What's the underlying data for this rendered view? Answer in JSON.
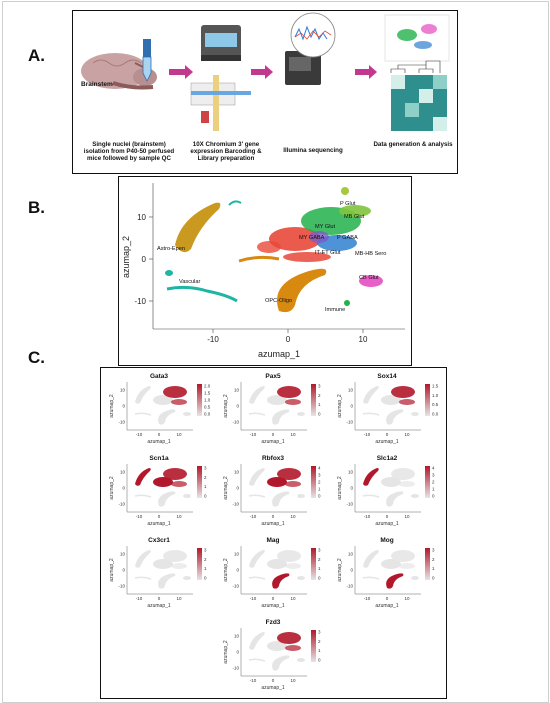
{
  "panels": {
    "a": {
      "letter": "A.",
      "brain_label": "Brainstem",
      "steps": [
        "Single nuclei (brainstem) isolation from P40-50 perfused mice followed by sample QC",
        "10X Chromium 3' gene expression Barcoding & Library preparation",
        "Illumina sequencing",
        "Data generation & analysis"
      ]
    },
    "b": {
      "letter": "B.",
      "xlabel": "azumap_1",
      "ylabel": "azumap_2",
      "xticks": [
        "-10",
        "0",
        "10"
      ],
      "yticks": [
        "10",
        "0",
        "-10"
      ],
      "clusters": [
        "P Glut",
        "MB Glut",
        "MY Glut",
        "MY GABA",
        "P GABA",
        "IT-ET Glut",
        "MB-HB Sero",
        "CB Glut",
        "Astro-Epen",
        "Vascular",
        "OPC-Oligo",
        "Immune"
      ]
    },
    "c": {
      "letter": "C.",
      "xlabel": "azumap_1",
      "ylabel": "azumap_2",
      "xticks": [
        "-10",
        "0",
        "10"
      ],
      "yticks": [
        "10",
        "0",
        "-10"
      ],
      "genes": [
        {
          "name": "Gata3",
          "legend": [
            "2.0",
            "1.5",
            "1.0",
            "0.5",
            "0.0"
          ]
        },
        {
          "name": "Pax5",
          "legend": [
            "3",
            "2",
            "1",
            "0"
          ]
        },
        {
          "name": "Sox14",
          "legend": [
            "1.5",
            "1.0",
            "0.5",
            "0.0"
          ]
        },
        {
          "name": "Scn1a",
          "legend": [
            "3",
            "2",
            "1",
            "0"
          ]
        },
        {
          "name": "Rbfox3",
          "legend": [
            "4",
            "3",
            "2",
            "1",
            "0"
          ]
        },
        {
          "name": "Slc1a2",
          "legend": [
            "4",
            "3",
            "2",
            "1",
            "0"
          ]
        },
        {
          "name": "Cx3cr1",
          "legend": [
            "3",
            "2",
            "1",
            "0"
          ]
        },
        {
          "name": "Mag",
          "legend": [
            "3",
            "2",
            "1",
            "0"
          ]
        },
        {
          "name": "Mog",
          "legend": [
            "3",
            "2",
            "1",
            "0"
          ]
        },
        {
          "name": "Fzd3",
          "legend": [
            "3",
            "2",
            "1",
            "0"
          ]
        }
      ]
    }
  },
  "colors": {
    "arrow": "#c2388f",
    "heat_high": "#b2182b",
    "heat_low": "#e5e5e5",
    "astro": "#c99a1f",
    "oligo": "#d88a10",
    "vascular": "#1fb5a5",
    "red_cluster": "#e8483a",
    "green_cluster": "#22b24a",
    "blue_cluster": "#2f7fd1",
    "cb": "#e85fc8"
  }
}
